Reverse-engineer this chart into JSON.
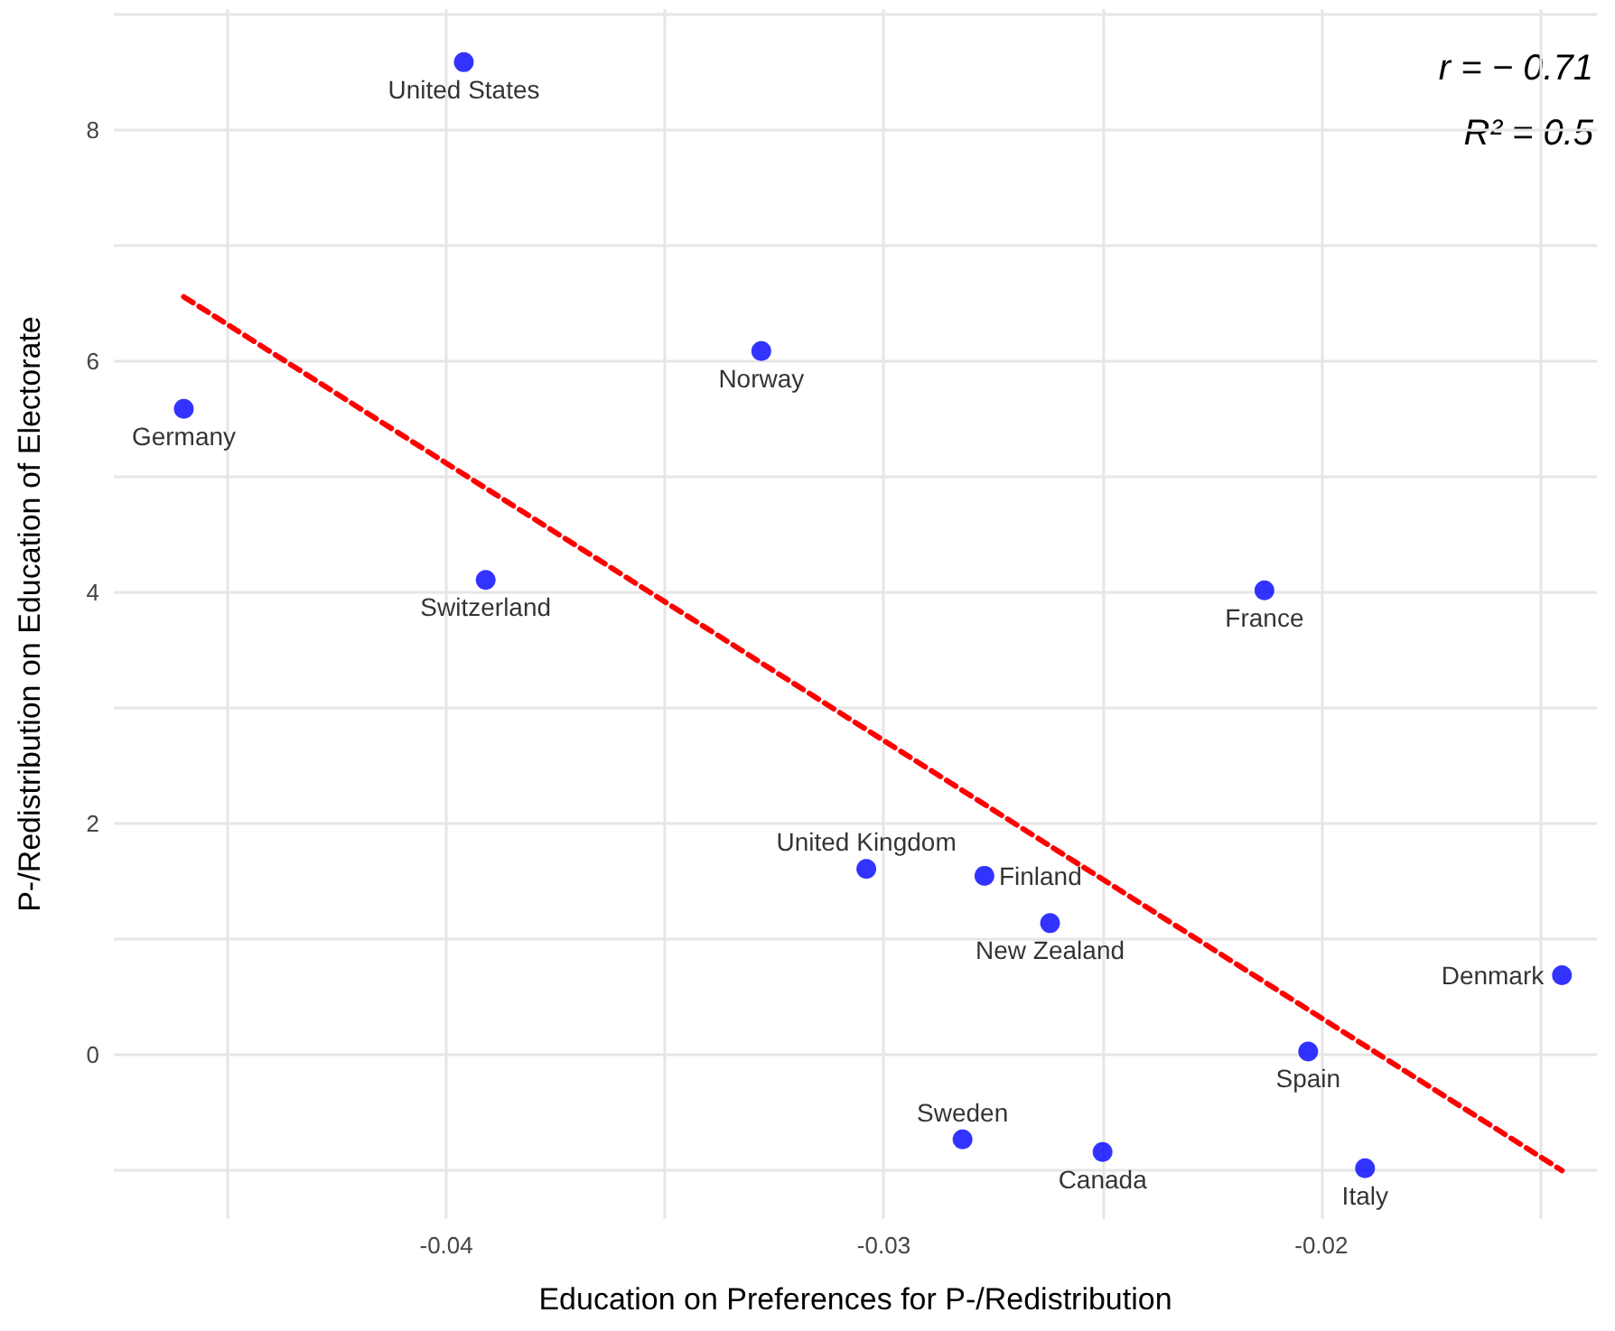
{
  "chart_data": {
    "type": "scatter",
    "xlabel": "Education on Preferences for P-/Redistribution",
    "ylabel": "P-/Redistribution on Education of Electorate",
    "xlim": [
      -0.0476,
      -0.0137
    ],
    "ylim": [
      -1.42,
      9.05
    ],
    "xticks": [
      {
        "value": -0.045,
        "label": null
      },
      {
        "value": -0.04,
        "label": "-0.04"
      },
      {
        "value": -0.035,
        "label": null
      },
      {
        "value": -0.03,
        "label": "-0.03"
      },
      {
        "value": -0.025,
        "label": null
      },
      {
        "value": -0.02,
        "label": "-0.02"
      },
      {
        "value": -0.015,
        "label": null
      }
    ],
    "yticks": [
      {
        "value": -1,
        "label": null
      },
      0,
      {
        "value": 1,
        "label": null
      },
      2,
      {
        "value": 3,
        "label": null
      },
      4,
      {
        "value": 5,
        "label": null
      },
      6,
      {
        "value": 7,
        "label": null
      },
      8,
      {
        "value": 9,
        "label": null
      }
    ],
    "grid": true,
    "marker": "circle",
    "series": [
      {
        "color": "#0000ff",
        "x": [
          -0.0396,
          -0.0328,
          -0.046,
          -0.0391,
          -0.0213,
          -0.0304,
          -0.0277,
          -0.0262,
          -0.0145,
          -0.0203,
          -0.0282,
          -0.025,
          -0.019
        ],
        "values": [
          8.59,
          6.09,
          5.59,
          4.11,
          4.02,
          1.61,
          1.55,
          1.14,
          0.69,
          0.03,
          -0.73,
          -0.84,
          -0.98
        ]
      },
      {
        "type": "line",
        "color": "#ff0000",
        "line_style": "dashed",
        "marker": "none",
        "x": [
          -0.046,
          -0.0145
        ],
        "values": [
          6.56,
          -1.0
        ]
      }
    ],
    "annotations": [
      {
        "text": "United States",
        "x": -0.0396,
        "y": 8.59
      },
      {
        "text": "Norway",
        "x": -0.0328,
        "y": 6.09
      },
      {
        "text": "Germany",
        "x": -0.046,
        "y": 5.59
      },
      {
        "text": "Switzerland",
        "x": -0.0391,
        "y": 4.11
      },
      {
        "text": "France",
        "x": -0.0213,
        "y": 4.02
      },
      {
        "text": "United Kingdom",
        "x": -0.0304,
        "y": 1.61
      },
      {
        "text": "Finland",
        "x": -0.0277,
        "y": 1.55
      },
      {
        "text": "New Zealand",
        "x": -0.0262,
        "y": 1.14
      },
      {
        "text": "Denmark",
        "x": -0.0145,
        "y": 0.69
      },
      {
        "text": "Spain",
        "x": -0.0203,
        "y": 0.03
      },
      {
        "text": "Sweden",
        "x": -0.0282,
        "y": -0.73
      },
      {
        "text": "Canada",
        "x": -0.025,
        "y": -0.84
      },
      {
        "text": "Italy",
        "x": -0.019,
        "y": -0.98
      },
      "r = − 0.71",
      "R² = 0.5"
    ]
  }
}
